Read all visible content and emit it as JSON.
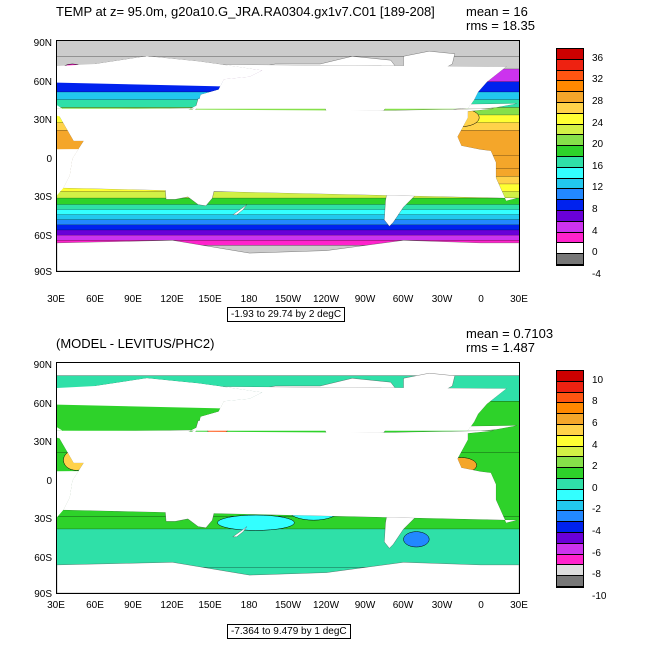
{
  "panels": [
    {
      "id": "temp",
      "title": "TEMP at z=  95.0m, g20a10.G_JRA.RA0304.gx1v7.C01 [189-208]",
      "mean": "mean = 16",
      "rms": "rms = 18.35",
      "range_label": "-1.93 to 29.74 by 2 degC",
      "colorbar_labels": [
        "36",
        "32",
        "28",
        "24",
        "20",
        "16",
        "12",
        "8",
        "4",
        "0",
        "-4"
      ],
      "colorbar_colors": [
        "#cc0000",
        "#ee2211",
        "#ff5511",
        "#ff8800",
        "#f4a62a",
        "#ffd24a",
        "#ffff33",
        "#d2f046",
        "#86e04a",
        "#2ed22a",
        "#2fe0a8",
        "#33ffff",
        "#22c8ee",
        "#2288ff",
        "#0022ee",
        "#6a00d8",
        "#cc33ee",
        "#ff22cc",
        "#ffffff",
        "#777777"
      ],
      "zonal_field": [
        {
          "lat": 90,
          "color": "#cccccc"
        },
        {
          "lat": 78,
          "color": "#cccccc"
        },
        {
          "lat": 68,
          "color": "#cc33ee"
        },
        {
          "lat": 58,
          "color": "#0022ee"
        },
        {
          "lat": 50,
          "color": "#22c8ee"
        },
        {
          "lat": 44,
          "color": "#2fe0a8"
        },
        {
          "lat": 38,
          "color": "#86e04a"
        },
        {
          "lat": 32,
          "color": "#ffff33"
        },
        {
          "lat": 26,
          "color": "#ffd24a"
        },
        {
          "lat": 20,
          "color": "#f4a62a"
        },
        {
          "lat": 0,
          "color": "#f4a62a"
        },
        {
          "lat": -10,
          "color": "#f4a62a"
        },
        {
          "lat": -16,
          "color": "#ffd24a"
        },
        {
          "lat": -22,
          "color": "#ffff33"
        },
        {
          "lat": -28,
          "color": "#d2f046"
        },
        {
          "lat": -33,
          "color": "#2ed22a"
        },
        {
          "lat": -38,
          "color": "#2fe0a8"
        },
        {
          "lat": -42,
          "color": "#33ffff"
        },
        {
          "lat": -46,
          "color": "#22c8ee"
        },
        {
          "lat": -50,
          "color": "#2288ff"
        },
        {
          "lat": -54,
          "color": "#0022ee"
        },
        {
          "lat": -58,
          "color": "#6a00d8"
        },
        {
          "lat": -62,
          "color": "#cc33ee"
        },
        {
          "lat": -66,
          "color": "#ff22cc"
        },
        {
          "lat": -70,
          "color": "#cccccc"
        },
        {
          "lat": -90,
          "color": "#ffffff"
        }
      ],
      "blobs": [
        {
          "lon": 180,
          "lat": 8,
          "dlon": 60,
          "dlat": 10,
          "color": "#f4a62a"
        },
        {
          "lon": 345,
          "lat": 30,
          "dlon": 14,
          "dlat": 7,
          "color": "#ffd24a"
        },
        {
          "lon": 100,
          "lat": -8,
          "dlon": 18,
          "dlat": 6,
          "color": "#f4a62a"
        },
        {
          "lon": 320,
          "lat": 58,
          "dlon": 10,
          "dlat": 6,
          "color": "#ff22cc"
        },
        {
          "lon": 42,
          "lat": 68,
          "dlon": 8,
          "dlat": 4,
          "color": "#ff22cc"
        }
      ]
    },
    {
      "id": "diff",
      "title": "(MODEL - LEVITUS/PHC2)",
      "mean": "mean = 0.7103",
      "rms": "rms = 1.487",
      "range_label": "-7.364 to 9.479 by 1 degC",
      "colorbar_labels": [
        "10",
        "8",
        "6",
        "4",
        "2",
        "0",
        "-2",
        "-4",
        "-6",
        "-8",
        "-10"
      ],
      "colorbar_colors": [
        "#cc0000",
        "#ee2211",
        "#ff5511",
        "#ff8800",
        "#f4a62a",
        "#ffd24a",
        "#ffff33",
        "#d2f046",
        "#86e04a",
        "#2ed22a",
        "#2fe0a8",
        "#33ffff",
        "#22c8ee",
        "#2288ff",
        "#0022ee",
        "#6a00d8",
        "#cc33ee",
        "#ff22cc",
        "#dddddd",
        "#777777"
      ],
      "zonal_field": [
        {
          "lat": 90,
          "color": "#ffffff"
        },
        {
          "lat": 80,
          "color": "#2fe0a8"
        },
        {
          "lat": 60,
          "color": "#2ed22a"
        },
        {
          "lat": 20,
          "color": "#2ed22a"
        },
        {
          "lat": -30,
          "color": "#2ed22a"
        },
        {
          "lat": -40,
          "color": "#2fe0a8"
        },
        {
          "lat": -70,
          "color": "#2fe0a8"
        },
        {
          "lat": -90,
          "color": "#ffffff"
        }
      ],
      "blobs": [
        {
          "lon": 45,
          "lat": 14,
          "dlon": 10,
          "dlat": 8,
          "color": "#ffd24a"
        },
        {
          "lon": 210,
          "lat": 3,
          "dlon": 22,
          "dlat": 5,
          "color": "#f4a62a"
        },
        {
          "lon": 212,
          "lat": 3,
          "dlon": 8,
          "dlat": 2,
          "color": "#cc0000"
        },
        {
          "lon": 345,
          "lat": 10,
          "dlon": 12,
          "dlat": 6,
          "color": "#f4a62a"
        },
        {
          "lon": 315,
          "lat": 48,
          "dlon": 8,
          "dlat": 6,
          "color": "#0022ee"
        },
        {
          "lon": 315,
          "lat": 48,
          "dlon": 4,
          "dlat": 3,
          "color": "#6a00d8"
        },
        {
          "lon": 310,
          "lat": -48,
          "dlon": 10,
          "dlat": 6,
          "color": "#2288ff"
        },
        {
          "lon": 185,
          "lat": -35,
          "dlon": 30,
          "dlat": 6,
          "color": "#33ffff"
        },
        {
          "lon": 230,
          "lat": -25,
          "dlon": 20,
          "dlat": 8,
          "color": "#33ffff"
        },
        {
          "lon": 155,
          "lat": 38,
          "dlon": 8,
          "dlat": 4,
          "color": "#ff5511"
        },
        {
          "lon": 80,
          "lat": -20,
          "dlon": 15,
          "dlat": 6,
          "color": "#33ffff"
        }
      ]
    }
  ],
  "axes": {
    "lat_labels": [
      "90N",
      "60N",
      "30N",
      "0",
      "30S",
      "60S",
      "90S"
    ],
    "lon_labels": [
      "30E",
      "60E",
      "90E",
      "120E",
      "150E",
      "180",
      "150W",
      "120W",
      "90W",
      "60W",
      "30W",
      "0",
      "30E"
    ]
  },
  "land": {
    "color": "#ffffff",
    "polygons": [
      {
        "name": "north-america",
        "lonlat": [
          [
            190,
            70
          ],
          [
            200,
            72
          ],
          [
            235,
            72
          ],
          [
            260,
            78
          ],
          [
            290,
            75
          ],
          [
            300,
            62
          ],
          [
            297,
            47
          ],
          [
            290,
            42
          ],
          [
            284,
            35
          ],
          [
            279,
            26
          ],
          [
            277,
            20
          ],
          [
            272,
            18
          ],
          [
            262,
            18
          ],
          [
            255,
            22
          ],
          [
            250,
            30
          ],
          [
            240,
            35
          ],
          [
            235,
            45
          ],
          [
            225,
            55
          ],
          [
            212,
            60
          ],
          [
            200,
            58
          ],
          [
            190,
            65
          ]
        ]
      },
      {
        "name": "central-america",
        "lonlat": [
          [
            262,
            18
          ],
          [
            272,
            18
          ],
          [
            278,
            10
          ],
          [
            281,
            8
          ],
          [
            277,
            8
          ],
          [
            270,
            14
          ],
          [
            263,
            16
          ]
        ]
      },
      {
        "name": "south-america",
        "lonlat": [
          [
            280,
            10
          ],
          [
            290,
            12
          ],
          [
            300,
            8
          ],
          [
            310,
            0
          ],
          [
            325,
            -6
          ],
          [
            322,
            -22
          ],
          [
            312,
            -28
          ],
          [
            300,
            -40
          ],
          [
            292,
            -52
          ],
          [
            289,
            -55
          ],
          [
            285,
            -50
          ],
          [
            286,
            -35
          ],
          [
            289,
            -18
          ],
          [
            280,
            -5
          ],
          [
            279,
            2
          ]
        ]
      },
      {
        "name": "eurasia",
        "lonlat": [
          [
            350,
            37
          ],
          [
            355,
            44
          ],
          [
            358,
            50
          ],
          [
            5,
            58
          ],
          [
            20,
            70
          ],
          [
            60,
            72
          ],
          [
            100,
            78
          ],
          [
            140,
            74
          ],
          [
            170,
            70
          ],
          [
            190,
            67
          ],
          [
            180,
            62
          ],
          [
            160,
            60
          ],
          [
            156,
            52
          ],
          [
            142,
            48
          ],
          [
            140,
            40
          ],
          [
            130,
            35
          ],
          [
            122,
            31
          ],
          [
            120,
            25
          ],
          [
            110,
            20
          ],
          [
            108,
            12
          ],
          [
            100,
            14
          ],
          [
            98,
            8
          ],
          [
            92,
            22
          ],
          [
            80,
            12
          ],
          [
            72,
            20
          ],
          [
            60,
            25
          ],
          [
            50,
            30
          ],
          [
            36,
            36
          ],
          [
            28,
            41
          ],
          [
            12,
            38
          ],
          [
            0,
            37
          ]
        ]
      },
      {
        "name": "africa",
        "lonlat": [
          [
            350,
            35
          ],
          [
            10,
            37
          ],
          [
            32,
            31
          ],
          [
            43,
            12
          ],
          [
            51,
            12
          ],
          [
            42,
            -2
          ],
          [
            40,
            -15
          ],
          [
            35,
            -25
          ],
          [
            28,
            -33
          ],
          [
            20,
            -35
          ],
          [
            12,
            -17
          ],
          [
            12,
            -5
          ],
          [
            8,
            4
          ],
          [
            0,
            5
          ],
          [
            345,
            8
          ],
          [
            342,
            15
          ],
          [
            350,
            30
          ]
        ]
      },
      {
        "name": "australia",
        "lonlat": [
          [
            114,
            -22
          ],
          [
            122,
            -18
          ],
          [
            130,
            -12
          ],
          [
            137,
            -12
          ],
          [
            142,
            -11
          ],
          [
            146,
            -18
          ],
          [
            153,
            -25
          ],
          [
            151,
            -33
          ],
          [
            146,
            -39
          ],
          [
            140,
            -38
          ],
          [
            132,
            -32
          ],
          [
            122,
            -34
          ],
          [
            115,
            -34
          ]
        ]
      },
      {
        "name": "antarctica",
        "lonlat": [
          [
            30,
            -68
          ],
          [
            120,
            -66
          ],
          [
            180,
            -76
          ],
          [
            240,
            -74
          ],
          [
            300,
            -66
          ],
          [
            360,
            -68
          ],
          [
            390,
            -68
          ],
          [
            390,
            -90
          ],
          [
            30,
            -90
          ]
        ]
      },
      {
        "name": "greenland",
        "lonlat": [
          [
            300,
            78
          ],
          [
            320,
            82
          ],
          [
            340,
            80
          ],
          [
            338,
            72
          ],
          [
            320,
            62
          ],
          [
            310,
            62
          ],
          [
            300,
            70
          ]
        ]
      },
      {
        "name": "indonesia",
        "lonlat": [
          [
            96,
            5
          ],
          [
            105,
            -6
          ],
          [
            115,
            -8
          ],
          [
            125,
            -8
          ],
          [
            132,
            -3
          ],
          [
            140,
            -4
          ],
          [
            150,
            -8
          ],
          [
            140,
            -10
          ],
          [
            120,
            -10
          ],
          [
            105,
            -8
          ],
          [
            98,
            0
          ]
        ]
      },
      {
        "name": "japan",
        "lonlat": [
          [
            130,
            32
          ],
          [
            136,
            34
          ],
          [
            141,
            40
          ],
          [
            144,
            44
          ],
          [
            140,
            45
          ],
          [
            138,
            38
          ],
          [
            131,
            34
          ]
        ]
      },
      {
        "name": "madagascar",
        "lonlat": [
          [
            44,
            -13
          ],
          [
            50,
            -15
          ],
          [
            48,
            -25
          ],
          [
            44,
            -24
          ]
        ]
      },
      {
        "name": "new-zealand",
        "lonlat": [
          [
            167,
            -46
          ],
          [
            174,
            -41
          ],
          [
            178,
            -38
          ],
          [
            175,
            -42
          ],
          [
            170,
            -46
          ]
        ]
      },
      {
        "name": "uk",
        "lonlat": [
          [
            354,
            50
          ],
          [
            358,
            52
          ],
          [
            357,
            58
          ],
          [
            354,
            58
          ],
          [
            352,
            54
          ]
        ]
      }
    ]
  }
}
